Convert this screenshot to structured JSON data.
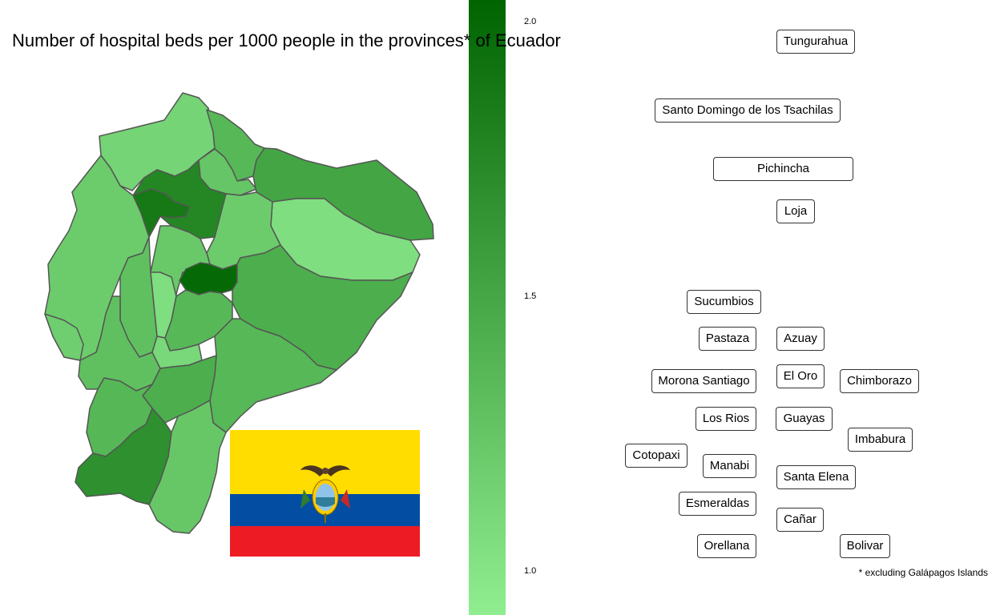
{
  "title": "Number of hospital beds per 1000 people in the provinces* of Ecuador",
  "footnote": "* excluding Galápagos Islands",
  "colors": {
    "scale_low": "#90ee90",
    "scale_high": "#006400",
    "border": "#555555",
    "flag_yellow": "#FFDD00",
    "flag_blue": "#034EA2",
    "flag_red": "#ED1C24"
  },
  "legend": {
    "type": "continuous colorbar",
    "range": [
      0.92,
      2.04
    ],
    "ticks": [
      {
        "value": 1.0,
        "label": "1.0"
      },
      {
        "value": 1.5,
        "label": "1.5"
      },
      {
        "value": 2.0,
        "label": "2.0"
      }
    ]
  },
  "provinces": [
    {
      "name": "Tungurahua",
      "value": 2.0
    },
    {
      "name": "Santo Domingo de los Tsachilas",
      "value": 1.87
    },
    {
      "name": "Pichincha",
      "value": 1.76
    },
    {
      "name": "Loja",
      "value": 1.68
    },
    {
      "name": "Sucumbios",
      "value": 1.51
    },
    {
      "name": "Azuay",
      "value": 1.44
    },
    {
      "name": "Pastaza",
      "value": 1.44
    },
    {
      "name": "El Oro",
      "value": 1.37
    },
    {
      "name": "Chimborazo",
      "value": 1.36
    },
    {
      "name": "Morona Santiago",
      "value": 1.36
    },
    {
      "name": "Guayas",
      "value": 1.29
    },
    {
      "name": "Los Rios",
      "value": 1.29
    },
    {
      "name": "Imbabura",
      "value": 1.25
    },
    {
      "name": "Cotopaxi",
      "value": 1.22
    },
    {
      "name": "Manabi",
      "value": 1.2
    },
    {
      "name": "Santa Elena",
      "value": 1.18
    },
    {
      "name": "Esmeraldas",
      "value": 1.13
    },
    {
      "name": "Cañar",
      "value": 1.1
    },
    {
      "name": "Orellana",
      "value": 1.05
    },
    {
      "name": "Bolivar",
      "value": 1.05
    }
  ]
}
